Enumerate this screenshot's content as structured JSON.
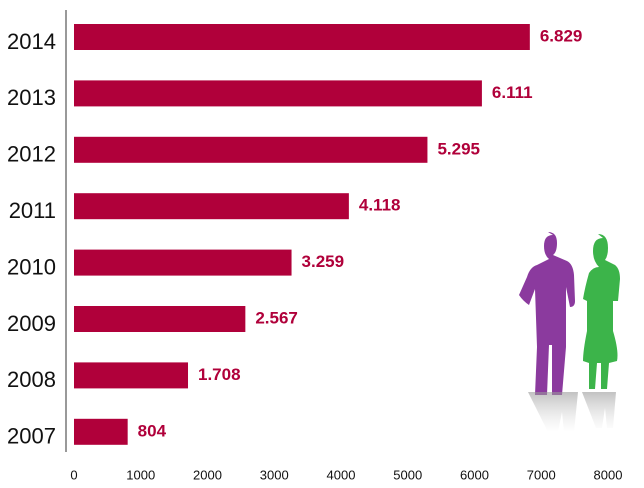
{
  "chart_data": {
    "type": "bar",
    "orientation": "horizontal",
    "categories": [
      "2014",
      "2013",
      "2012",
      "2011",
      "2010",
      "2009",
      "2008",
      "2007"
    ],
    "values": [
      6829,
      6111,
      5295,
      4118,
      3259,
      2567,
      1708,
      804
    ],
    "value_labels": [
      "6.829",
      "6.111",
      "5.295",
      "4.118",
      "3.259",
      "2.567",
      "1.708",
      "804"
    ],
    "color": "#b0003a",
    "xlim": [
      0,
      8000
    ],
    "xticks": [
      0,
      1000,
      2000,
      3000,
      4000,
      5000,
      6000,
      7000,
      8000
    ]
  }
}
